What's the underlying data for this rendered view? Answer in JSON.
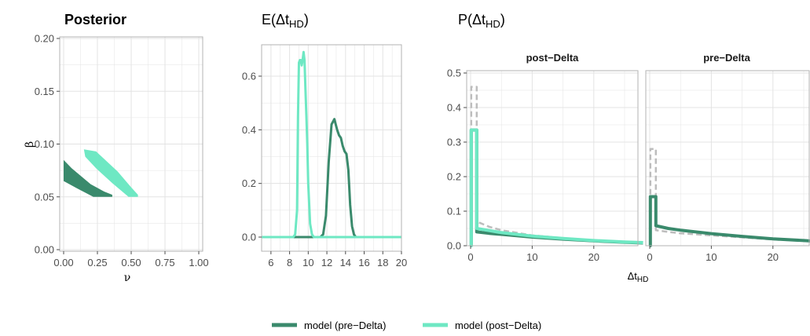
{
  "colors": {
    "pre_delta": "#3a8a6c",
    "post_delta": "#6ee8c3",
    "data_dashed": "#bdbdbd",
    "grid": "#e3e3e3",
    "border": "#b3b3b3"
  },
  "panel_a": {
    "title": "Posterior",
    "xlabel": "ν",
    "ylabel": "β",
    "xticks": [
      "0.00",
      "0.25",
      "0.50",
      "0.75",
      "1.00"
    ],
    "yticks": [
      "0.00",
      "0.05",
      "0.10",
      "0.15",
      "0.20"
    ]
  },
  "panel_b": {
    "title_main": "E(Δt",
    "title_sub": "HD",
    "title_close": ")",
    "xticks": [
      "6",
      "8",
      "10",
      "12",
      "14",
      "16",
      "18",
      "20"
    ],
    "yticks": [
      "0.0",
      "0.2",
      "0.4",
      "0.6"
    ]
  },
  "panel_c": {
    "title_main": "P(Δt",
    "title_sub": "HD",
    "title_close": ")",
    "facets": [
      "post−Delta",
      "pre−Delta"
    ],
    "yticks": [
      "0.0",
      "0.1",
      "0.2",
      "0.3",
      "0.4",
      "0.5"
    ],
    "xticks": [
      "0",
      "10",
      "20"
    ],
    "xlabel_main": "Δt",
    "xlabel_sub": "HD"
  },
  "legend": {
    "items": [
      {
        "label": "model (pre−Delta)",
        "color": "#3a8a6c"
      },
      {
        "label": "model (post−Delta)",
        "color": "#6ee8c3"
      }
    ]
  },
  "chart_data": [
    {
      "type": "scatter",
      "title": "Posterior",
      "xlabel": "ν",
      "ylabel": "β",
      "xlim": [
        0,
        1
      ],
      "ylim": [
        0,
        0.2
      ],
      "series": [
        {
          "name": "model (pre−Delta)",
          "region_polygon": [
            [
              0.0,
              0.085
            ],
            [
              0.06,
              0.077
            ],
            [
              0.2,
              0.062
            ],
            [
              0.3,
              0.055
            ],
            [
              0.36,
              0.052
            ],
            [
              0.36,
              0.05
            ],
            [
              0.22,
              0.05
            ],
            [
              0.1,
              0.058
            ],
            [
              0.0,
              0.065
            ]
          ]
        },
        {
          "name": "model (post−Delta)",
          "region_polygon": [
            [
              0.15,
              0.095
            ],
            [
              0.24,
              0.093
            ],
            [
              0.4,
              0.074
            ],
            [
              0.5,
              0.059
            ],
            [
              0.55,
              0.052
            ],
            [
              0.55,
              0.05
            ],
            [
              0.48,
              0.05
            ],
            [
              0.36,
              0.063
            ],
            [
              0.24,
              0.077
            ],
            [
              0.16,
              0.088
            ]
          ]
        }
      ]
    },
    {
      "type": "line",
      "title": "E(ΔtHD)",
      "xlim": [
        5,
        20
      ],
      "ylim": [
        -0.05,
        0.72
      ],
      "series": [
        {
          "name": "model (pre−Delta)",
          "x": [
            5,
            11.3,
            11.6,
            11.9,
            12.2,
            12.5,
            12.8,
            13.1,
            13.3,
            13.5,
            13.7,
            13.9,
            14.1,
            14.3,
            14.5,
            14.7,
            14.9,
            15.1,
            15.3,
            20
          ],
          "y": [
            0,
            0,
            0.01,
            0.08,
            0.28,
            0.42,
            0.44,
            0.4,
            0.38,
            0.37,
            0.34,
            0.32,
            0.31,
            0.25,
            0.12,
            0.04,
            0.01,
            0,
            0,
            0
          ]
        },
        {
          "name": "model (post−Delta)",
          "x": [
            5,
            8.4,
            8.6,
            8.8,
            8.9,
            9.0,
            9.1,
            9.2,
            9.3,
            9.4,
            9.5,
            9.6,
            9.7,
            9.8,
            9.9,
            10.0,
            10.2,
            10.4,
            10.6,
            20
          ],
          "y": [
            0,
            0,
            0.01,
            0.1,
            0.45,
            0.65,
            0.66,
            0.66,
            0.64,
            0.66,
            0.69,
            0.66,
            0.55,
            0.45,
            0.35,
            0.2,
            0.05,
            0.01,
            0,
            0
          ]
        }
      ]
    },
    {
      "type": "line",
      "title": "P(ΔtHD) — post−Delta",
      "xlim": [
        0,
        28
      ],
      "ylim": [
        0,
        0.5
      ],
      "xlabel": "ΔtHD",
      "series": [
        {
          "name": "data",
          "style": "dashed",
          "x": [
            0,
            0.1,
            0.1,
            1,
            1,
            3,
            5,
            10,
            15,
            20,
            25,
            28
          ],
          "y": [
            0,
            0,
            0.46,
            0.46,
            0.07,
            0.055,
            0.045,
            0.03,
            0.022,
            0.016,
            0.012,
            0.01
          ]
        },
        {
          "name": "model (pre−Delta)",
          "x": [
            0,
            0.1,
            0.1,
            1,
            1,
            3,
            5,
            10,
            15,
            20,
            25,
            28
          ],
          "y": [
            0,
            0,
            0.335,
            0.335,
            0.04,
            0.036,
            0.033,
            0.025,
            0.019,
            0.014,
            0.01,
            0.008
          ]
        },
        {
          "name": "model (post−Delta)",
          "x": [
            0,
            0.1,
            0.1,
            1,
            1,
            3,
            5,
            10,
            15,
            20,
            25,
            28
          ],
          "y": [
            0,
            0,
            0.335,
            0.335,
            0.05,
            0.044,
            0.038,
            0.028,
            0.021,
            0.015,
            0.011,
            0.009
          ]
        }
      ]
    },
    {
      "type": "line",
      "title": "P(ΔtHD) — pre−Delta",
      "xlim": [
        0,
        28
      ],
      "ylim": [
        0,
        0.5
      ],
      "xlabel": "ΔtHD",
      "series": [
        {
          "name": "data",
          "style": "dashed",
          "x": [
            0,
            0.1,
            0.1,
            1,
            1,
            3,
            5,
            10,
            15,
            20,
            25,
            28
          ],
          "y": [
            0,
            0,
            0.28,
            0.28,
            0.045,
            0.04,
            0.036,
            0.03,
            0.024,
            0.018,
            0.014,
            0.012
          ]
        },
        {
          "name": "model (pre−Delta)",
          "x": [
            0,
            0.1,
            0.1,
            1,
            1,
            3,
            5,
            10,
            15,
            20,
            25,
            28
          ],
          "y": [
            0,
            0,
            0.142,
            0.142,
            0.058,
            0.05,
            0.045,
            0.035,
            0.027,
            0.02,
            0.015,
            0.012
          ]
        }
      ]
    }
  ]
}
